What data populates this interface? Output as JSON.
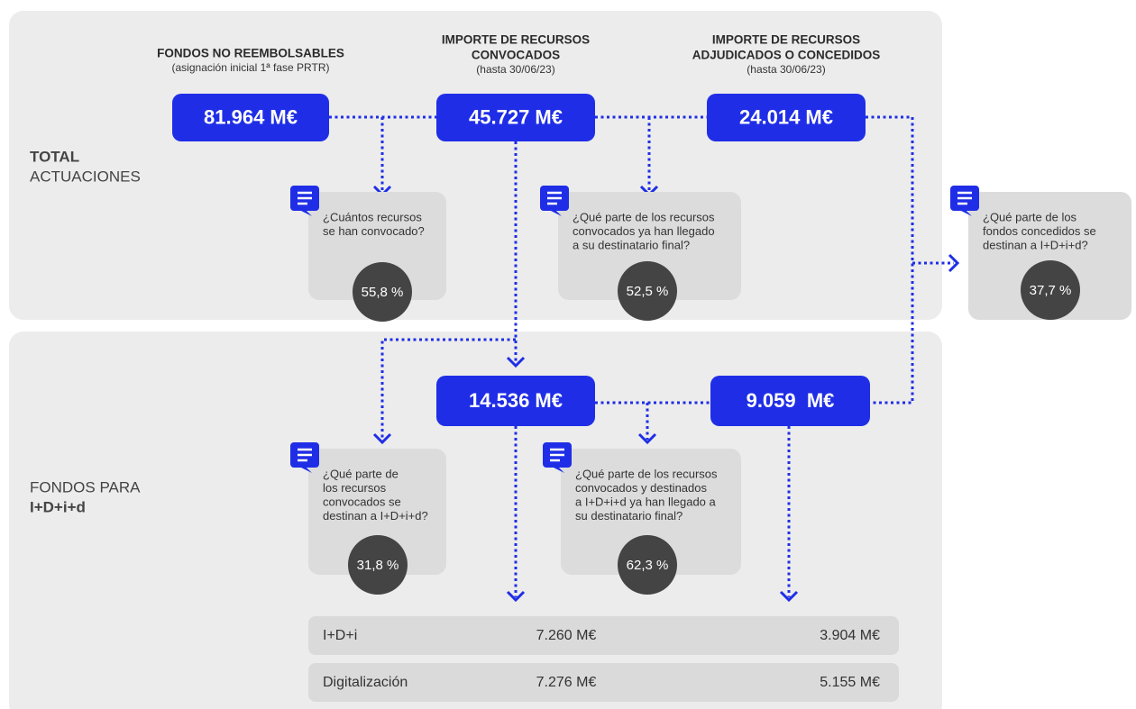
{
  "columns": [
    {
      "title": [
        "FONDOS NO REEMBOLSABLES"
      ],
      "subtitle": "(asignación inicial 1ª fase PRTR)"
    },
    {
      "title": [
        "IMPORTE DE RECURSOS",
        "CONVOCADOS"
      ],
      "subtitle": "(hasta 30/06/23)"
    },
    {
      "title": [
        "IMPORTE DE RECURSOS",
        "ADJUDICADOS O CONCEDIDOS"
      ],
      "subtitle": "(hasta 30/06/23)"
    }
  ],
  "rows": [
    {
      "lines": [
        "TOTAL",
        "ACTUACIONES"
      ]
    },
    {
      "lines": [
        "FONDOS PARA",
        "I+D+i+d"
      ]
    }
  ],
  "boxes": [
    "81.964 M€",
    "45.727 M€",
    "24.014 M€",
    "14.536 M€",
    "9.059  M€"
  ],
  "questions": [
    {
      "text": [
        "¿Cuántos recursos",
        "se han convocado?"
      ],
      "value": "55,8 %"
    },
    {
      "text": [
        "¿Qué parte de los recursos",
        "convocados ya han llegado",
        "a su destinatario final?"
      ],
      "value": "52,5 %"
    },
    {
      "text": [
        "¿Qué parte de los",
        "fondos concedidos se",
        "destinan a I+D+i+d?"
      ],
      "value": "37,7 %"
    },
    {
      "text": [
        "¿Qué parte de",
        "los recursos",
        "convocados se",
        "destinan a I+D+i+d?"
      ],
      "value": "31,8 %"
    },
    {
      "text": [
        "¿Qué parte de los recursos",
        "convocados y destinados",
        "a I+D+i+d ya han llegado a",
        "su destinatario final?"
      ],
      "value": "62,3 %"
    }
  ],
  "table": {
    "rows": [
      [
        "I+D+i",
        "7.260 M€",
        "3.904 M€"
      ],
      [
        "Digitalización",
        "7.276 M€",
        "5.155 M€"
      ]
    ]
  }
}
